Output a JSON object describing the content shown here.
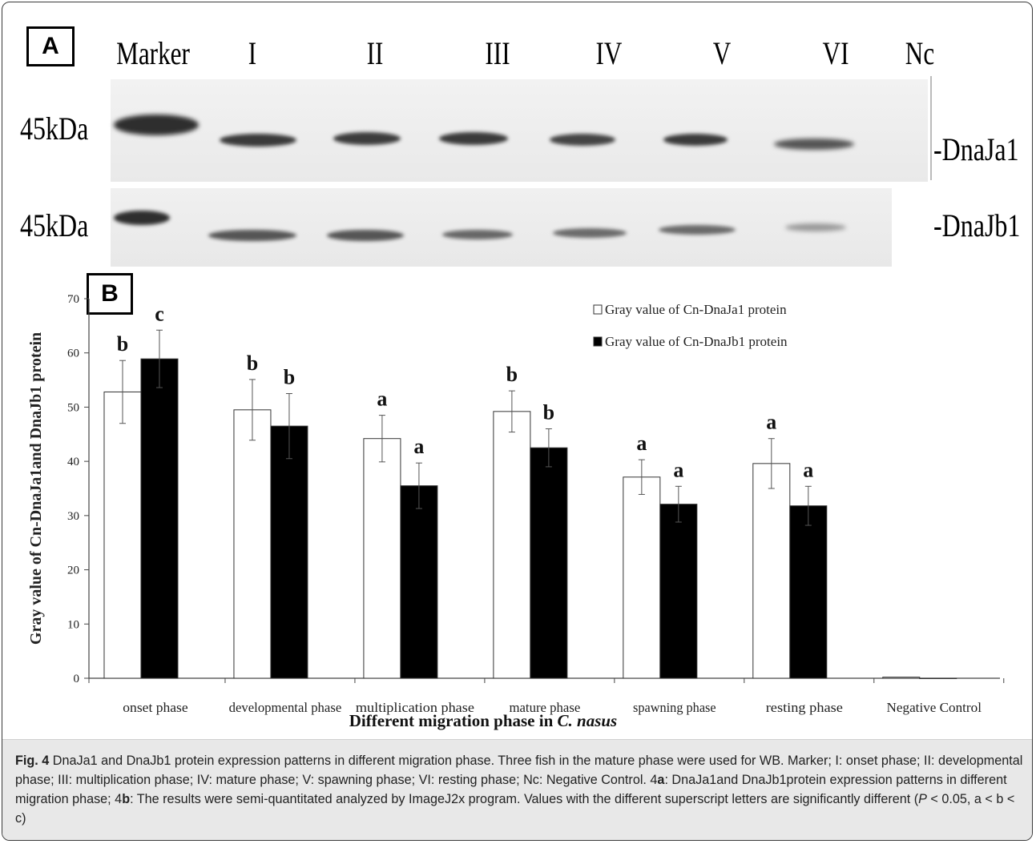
{
  "panel_a": {
    "label": "A",
    "lanes": [
      "Marker",
      "I",
      "II",
      "III",
      "IV",
      "V",
      "VI",
      "Nc"
    ],
    "size_label_1": "45kDa",
    "size_label_2": "45kDa",
    "protein_1": "-DnaJa1",
    "protein_2": "-DnaJb1"
  },
  "panel_b": {
    "label": "B"
  },
  "chart_data": {
    "type": "bar",
    "title": "",
    "ylabel": "Gray value of Cn-DnaJa1and DnaJb1 protein",
    "xlabel": "Different migration phase in C. nasus",
    "xlabel_plain": "Different migration phase in ",
    "xlabel_italic": "C. nasus",
    "ylim": [
      0,
      70
    ],
    "yticks": [
      0,
      10,
      20,
      30,
      40,
      50,
      60,
      70
    ],
    "categories": [
      "onset phase",
      "developmental phase",
      "multiplication phase",
      "mature phase",
      "spawning phase",
      "resting phase",
      "Negative Control"
    ],
    "series": [
      {
        "name": "Gray value of Cn-DnaJa1 protein",
        "fill": "#ffffff",
        "values": [
          52.8,
          49.5,
          44.2,
          49.2,
          37.1,
          39.6,
          0.2
        ],
        "errors": [
          5.8,
          5.6,
          4.3,
          3.8,
          3.2,
          4.6,
          0
        ],
        "letters": [
          "b",
          "b",
          "a",
          "b",
          "a",
          "a",
          ""
        ]
      },
      {
        "name": "Gray value of Cn-DnaJb1 protein",
        "fill": "#000000",
        "values": [
          58.9,
          46.5,
          35.5,
          42.5,
          32.1,
          31.8,
          0
        ],
        "errors": [
          5.3,
          6.0,
          4.2,
          3.5,
          3.3,
          3.6,
          0
        ],
        "letters": [
          "c",
          "b",
          "a",
          "b",
          "a",
          "a",
          ""
        ]
      }
    ],
    "legend_position": "top-right",
    "grid": false
  },
  "caption": {
    "fig_label": "Fig. 4",
    "text_1": " DnaJa1 and DnaJb1 protein expression patterns in different migration phase. Three fish in the mature phase were used for WB. Marker; I: onset phase; II: developmental phase; III: multiplication phase; IV: mature phase; V: spawning phase; VI: resting phase; Nc: Negative Control. 4",
    "bold_a": "a",
    "text_2": ": DnaJa1and DnaJb1protein expression patterns in different migration phase; 4",
    "bold_b": "b",
    "text_3": ": The results were semi-quantitated analyzed by ImageJ2x program. Values with the different superscript letters are significantly different (",
    "italic_p": "P",
    "text_4": " < 0.05, a < b < c)"
  }
}
